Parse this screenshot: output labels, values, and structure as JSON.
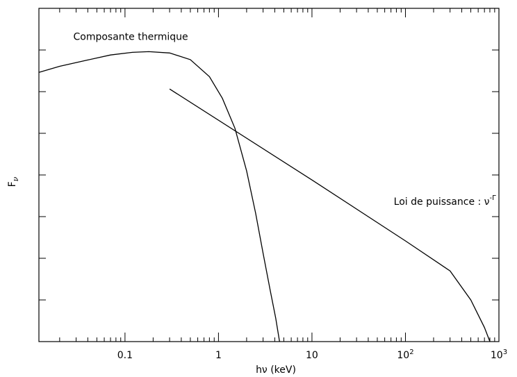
{
  "chart_data": {
    "type": "line",
    "xscale": "log",
    "xlim": [
      0.012,
      1000
    ],
    "ylim": [
      0,
      1
    ],
    "ylabel": "F",
    "ylabel_sub": "ν",
    "xlabel": "hν (keV)",
    "xticks": [
      {
        "value": 0.1,
        "label": "0.1"
      },
      {
        "value": 1,
        "label": "1"
      },
      {
        "value": 10,
        "label": "10"
      },
      {
        "value": 100,
        "label": "10",
        "sup": "2"
      },
      {
        "value": 1000,
        "label": "10",
        "sup": "3"
      }
    ],
    "series": [
      {
        "name": "Composante thermique",
        "points": [
          [
            0.012,
            0.808
          ],
          [
            0.02,
            0.826
          ],
          [
            0.04,
            0.845
          ],
          [
            0.07,
            0.86
          ],
          [
            0.12,
            0.868
          ],
          [
            0.18,
            0.87
          ],
          [
            0.3,
            0.866
          ],
          [
            0.5,
            0.846
          ],
          [
            0.8,
            0.795
          ],
          [
            1.1,
            0.73
          ],
          [
            1.5,
            0.64
          ],
          [
            2.0,
            0.512
          ],
          [
            2.5,
            0.385
          ],
          [
            3.0,
            0.265
          ],
          [
            3.6,
            0.15
          ],
          [
            4.1,
            0.07
          ],
          [
            4.5,
            0.0
          ]
        ]
      },
      {
        "name": "Loi de puissance : ν",
        "name_sup": "-Γ",
        "points": [
          [
            0.3,
            0.758
          ],
          [
            10,
            0.485
          ],
          [
            100,
            0.302
          ],
          [
            300,
            0.212
          ],
          [
            500,
            0.125
          ],
          [
            700,
            0.042
          ],
          [
            800,
            0.0
          ]
        ]
      }
    ],
    "annotations": [
      {
        "text": "Composante thermique",
        "x": 0.028,
        "y": 0.905
      },
      {
        "text": "Loi de puissance : ν",
        "sup": "-Γ",
        "x": 75,
        "y": 0.41
      }
    ]
  }
}
